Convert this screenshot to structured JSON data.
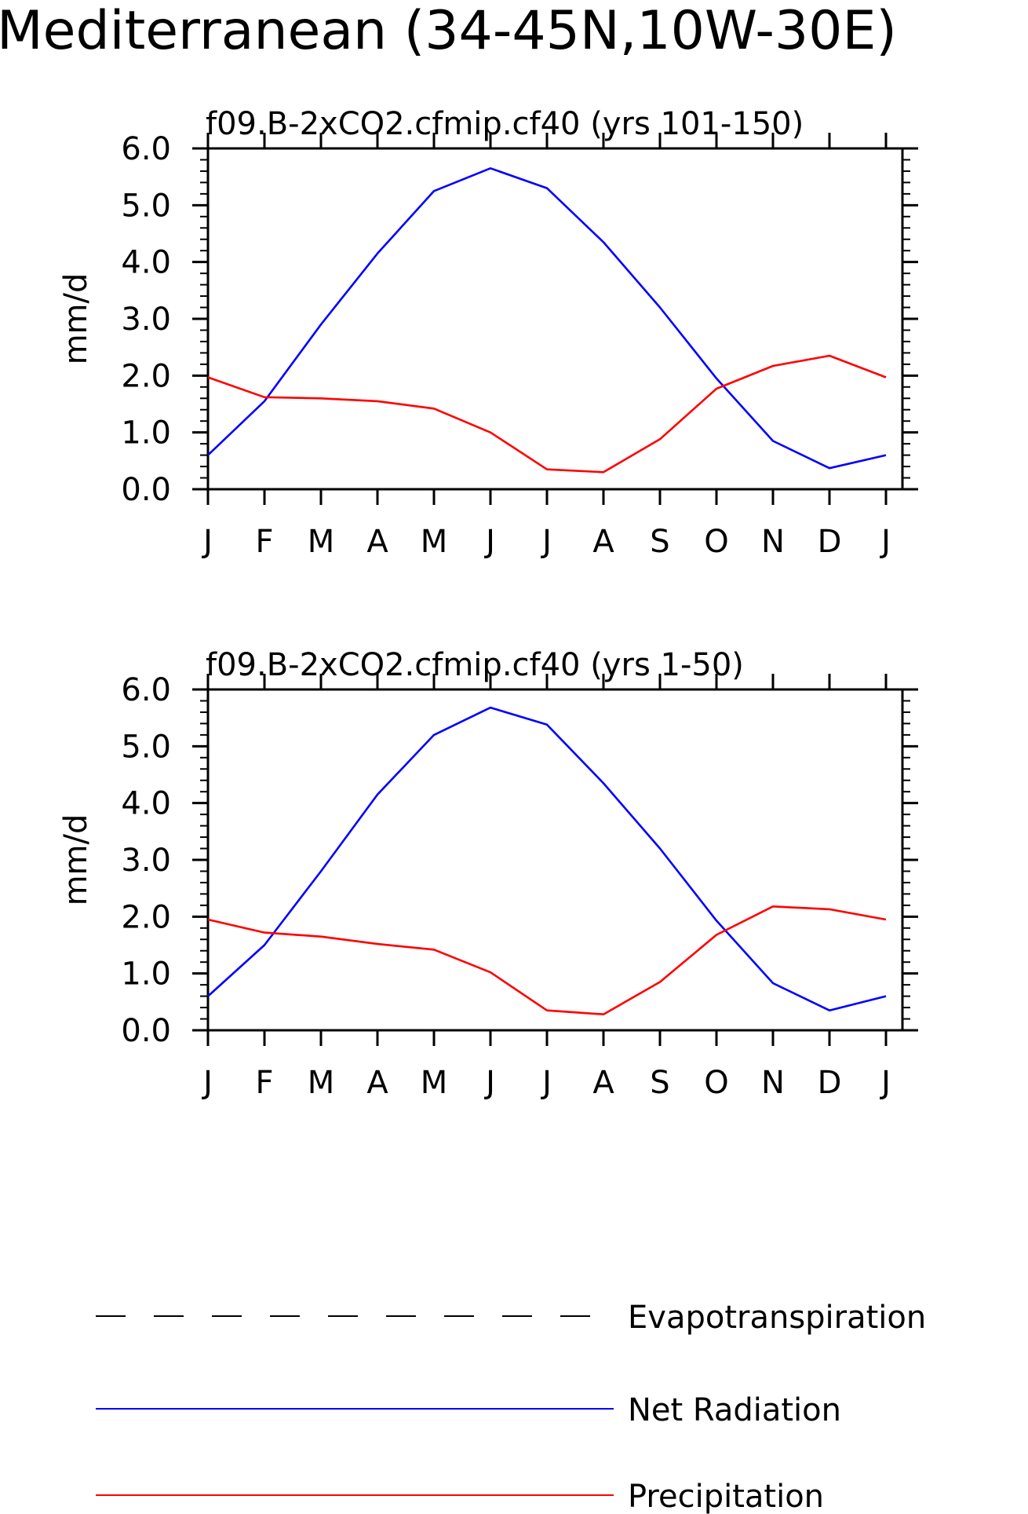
{
  "page": {
    "title": "Mediterranean (34-45N,10W-30E)"
  },
  "colors": {
    "net_radiation": "#0000ff",
    "precipitation": "#ff0000",
    "evapotranspiration": "#000000",
    "axes": "#000000",
    "background": "#ffffff"
  },
  "legend": {
    "items": [
      {
        "label": "Evapotranspiration",
        "style": "dashed",
        "color": "#000000"
      },
      {
        "label": "Net Radiation",
        "style": "solid",
        "color": "#0000ff"
      },
      {
        "label": "Precipitation",
        "style": "solid",
        "color": "#ff0000"
      }
    ]
  },
  "chart_data": [
    {
      "type": "line",
      "title": "f09.B-2xCO2.cfmip.cf40 (yrs 101-150)",
      "ylabel": "mm/d",
      "xlabel": "",
      "categories": [
        "J",
        "F",
        "M",
        "A",
        "M",
        "J",
        "J",
        "A",
        "S",
        "O",
        "N",
        "D",
        "J"
      ],
      "ylim": [
        0,
        6
      ],
      "yticks": [
        "0.0",
        "1.0",
        "2.0",
        "3.0",
        "4.0",
        "5.0",
        "6.0"
      ],
      "series": [
        {
          "name": "Net Radiation",
          "color": "#0000ff",
          "values": [
            0.6,
            1.55,
            2.9,
            4.15,
            5.25,
            5.65,
            5.3,
            4.35,
            3.2,
            1.95,
            0.85,
            0.37,
            0.6
          ]
        },
        {
          "name": "Precipitation",
          "color": "#ff0000",
          "values": [
            1.97,
            1.62,
            1.6,
            1.55,
            1.42,
            1.0,
            0.35,
            0.3,
            0.88,
            1.77,
            2.17,
            2.35,
            1.97
          ]
        }
      ]
    },
    {
      "type": "line",
      "title": "f09.B-2xCO2.cfmip.cf40 (yrs 1-50)",
      "ylabel": "mm/d",
      "xlabel": "",
      "categories": [
        "J",
        "F",
        "M",
        "A",
        "M",
        "J",
        "J",
        "A",
        "S",
        "O",
        "N",
        "D",
        "J"
      ],
      "ylim": [
        0,
        6
      ],
      "yticks": [
        "0.0",
        "1.0",
        "2.0",
        "3.0",
        "4.0",
        "5.0",
        "6.0"
      ],
      "series": [
        {
          "name": "Net Radiation",
          "color": "#0000ff",
          "values": [
            0.6,
            1.5,
            2.8,
            4.15,
            5.2,
            5.68,
            5.38,
            4.35,
            3.2,
            1.93,
            0.83,
            0.35,
            0.6
          ]
        },
        {
          "name": "Precipitation",
          "color": "#ff0000",
          "values": [
            1.95,
            1.72,
            1.65,
            1.52,
            1.42,
            1.02,
            0.35,
            0.28,
            0.85,
            1.68,
            2.18,
            2.13,
            1.95
          ]
        }
      ]
    }
  ]
}
